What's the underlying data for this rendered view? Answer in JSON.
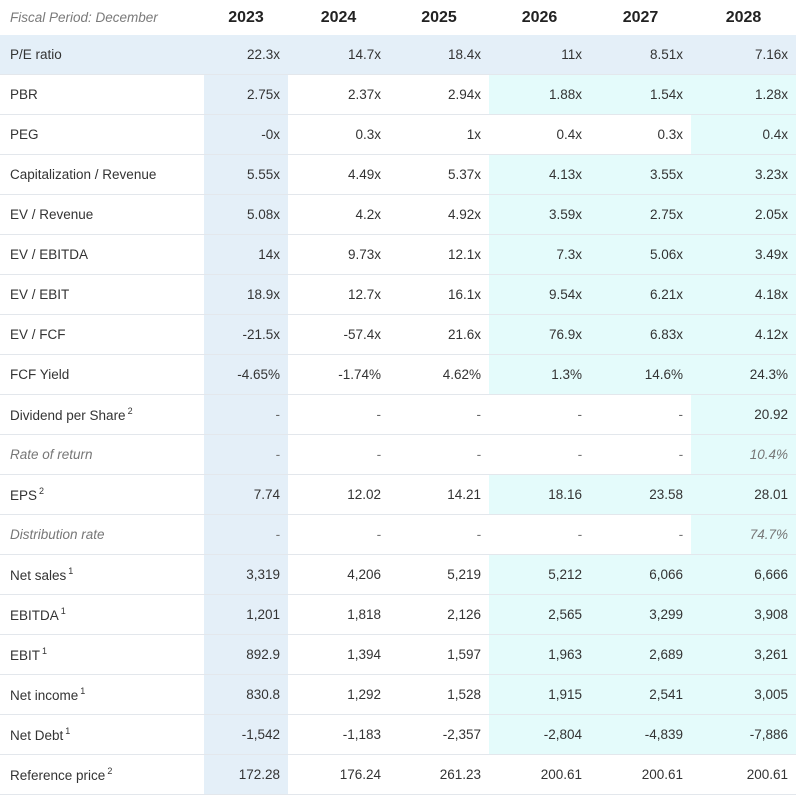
{
  "header": {
    "period_label": "Fiscal Period: December",
    "years": [
      "2023",
      "2024",
      "2025",
      "2026",
      "2027",
      "2028"
    ]
  },
  "rows": [
    {
      "label": "P/E ratio",
      "sup": "",
      "values": [
        "22.3x",
        "14.7x",
        "18.4x",
        "11x",
        "8.51x",
        "7.16x"
      ]
    },
    {
      "label": "PBR",
      "sup": "",
      "values": [
        "2.75x",
        "2.37x",
        "2.94x",
        "1.88x",
        "1.54x",
        "1.28x"
      ]
    },
    {
      "label": "PEG",
      "sup": "",
      "values": [
        "-0x",
        "0.3x",
        "1x",
        "0.4x",
        "0.3x",
        "0.4x"
      ]
    },
    {
      "label": "Capitalization / Revenue",
      "sup": "",
      "values": [
        "5.55x",
        "4.49x",
        "5.37x",
        "4.13x",
        "3.55x",
        "3.23x"
      ]
    },
    {
      "label": "EV / Revenue",
      "sup": "",
      "values": [
        "5.08x",
        "4.2x",
        "4.92x",
        "3.59x",
        "2.75x",
        "2.05x"
      ]
    },
    {
      "label": "EV / EBITDA",
      "sup": "",
      "values": [
        "14x",
        "9.73x",
        "12.1x",
        "7.3x",
        "5.06x",
        "3.49x"
      ]
    },
    {
      "label": "EV / EBIT",
      "sup": "",
      "values": [
        "18.9x",
        "12.7x",
        "16.1x",
        "9.54x",
        "6.21x",
        "4.18x"
      ]
    },
    {
      "label": "EV / FCF",
      "sup": "",
      "values": [
        "-21.5x",
        "-57.4x",
        "21.6x",
        "76.9x",
        "6.83x",
        "4.12x"
      ]
    },
    {
      "label": "FCF Yield",
      "sup": "",
      "values": [
        "-4.65%",
        "-1.74%",
        "4.62%",
        "1.3%",
        "14.6%",
        "24.3%"
      ]
    },
    {
      "label": "Dividend per Share",
      "sup": "2",
      "values": [
        "-",
        "-",
        "-",
        "-",
        "-",
        "20.92"
      ]
    },
    {
      "label": "Rate of return",
      "sup": "",
      "values": [
        "-",
        "-",
        "-",
        "-",
        "-",
        "10.4%"
      ]
    },
    {
      "label": "EPS",
      "sup": "2",
      "values": [
        "7.74",
        "12.02",
        "14.21",
        "18.16",
        "23.58",
        "28.01"
      ]
    },
    {
      "label": "Distribution rate",
      "sup": "",
      "values": [
        "-",
        "-",
        "-",
        "-",
        "-",
        "74.7%"
      ]
    },
    {
      "label": "Net sales",
      "sup": "1",
      "values": [
        "3,319",
        "4,206",
        "5,219",
        "5,212",
        "6,066",
        "6,666"
      ]
    },
    {
      "label": "EBITDA",
      "sup": "1",
      "values": [
        "1,201",
        "1,818",
        "2,126",
        "2,565",
        "3,299",
        "3,908"
      ]
    },
    {
      "label": "EBIT",
      "sup": "1",
      "values": [
        "892.9",
        "1,394",
        "1,597",
        "1,963",
        "2,689",
        "3,261"
      ]
    },
    {
      "label": "Net income",
      "sup": "1",
      "values": [
        "830.8",
        "1,292",
        "1,528",
        "1,915",
        "2,541",
        "3,005"
      ]
    },
    {
      "label": "Net Debt",
      "sup": "1",
      "values": [
        "-1,542",
        "-1,183",
        "-2,357",
        "-2,804",
        "-4,839",
        "-7,886"
      ]
    },
    {
      "label": "Reference price",
      "sup": "2",
      "values": [
        "172.28",
        "176.24",
        "261.23",
        "200.61",
        "200.61",
        "200.61"
      ]
    }
  ]
}
